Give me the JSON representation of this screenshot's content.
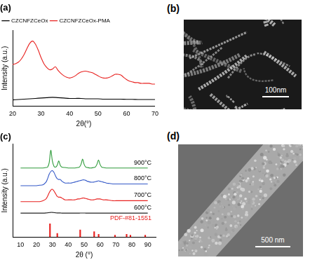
{
  "chart_data": [
    {
      "type": "line",
      "title": "(a)",
      "x_label": "2θ(°)",
      "y_label": "Intensity (a.u.)",
      "xlim": [
        20,
        70
      ],
      "xticks": [
        20,
        30,
        40,
        50,
        60,
        70
      ],
      "ylim": [
        0,
        1
      ],
      "tick_labels": "x",
      "grid": false,
      "legend": "top-left",
      "series": [
        {
          "name": "CZCNFZCeOx",
          "color": "#000000",
          "x": [
            20,
            22,
            24,
            26,
            28,
            30,
            32,
            34,
            36,
            38,
            40,
            42,
            44,
            46,
            48,
            50,
            52,
            54,
            56,
            58,
            60,
            62,
            64,
            66,
            68,
            70
          ],
          "values": [
            0.08,
            0.085,
            0.09,
            0.095,
            0.1,
            0.105,
            0.11,
            0.115,
            0.11,
            0.105,
            0.1,
            0.1,
            0.1,
            0.095,
            0.095,
            0.095,
            0.09,
            0.09,
            0.09,
            0.09,
            0.088,
            0.088,
            0.086,
            0.086,
            0.085,
            0.085
          ]
        },
        {
          "name": "CZCNFZCeOx-PMA",
          "color": "#e8211f",
          "x": [
            20,
            21,
            22,
            23,
            24,
            25,
            26,
            27,
            28,
            29,
            30,
            31,
            32,
            33,
            34,
            35,
            36,
            37,
            38,
            39,
            40,
            41,
            42,
            43,
            44,
            45,
            46,
            47,
            48,
            49,
            50,
            51,
            52,
            53,
            54,
            55,
            56,
            57,
            58,
            59,
            60,
            61,
            62,
            63,
            64,
            65,
            66,
            67,
            68,
            69,
            70
          ],
          "values": [
            0.55,
            0.56,
            0.58,
            0.62,
            0.68,
            0.76,
            0.83,
            0.86,
            0.82,
            0.74,
            0.64,
            0.56,
            0.51,
            0.48,
            0.49,
            0.52,
            0.47,
            0.43,
            0.4,
            0.38,
            0.37,
            0.38,
            0.4,
            0.43,
            0.45,
            0.46,
            0.46,
            0.45,
            0.44,
            0.42,
            0.4,
            0.38,
            0.37,
            0.37,
            0.38,
            0.4,
            0.42,
            0.42,
            0.41,
            0.38,
            0.35,
            0.33,
            0.32,
            0.31,
            0.31,
            0.3,
            0.3,
            0.3,
            0.3,
            0.29,
            0.29
          ]
        }
      ]
    },
    {
      "type": "line",
      "title": "(c)",
      "x_label": "2θ (°)",
      "y_label": "Intensity (a.u.)",
      "xlim": [
        10,
        90
      ],
      "xticks": [
        10,
        20,
        30,
        40,
        50,
        60,
        70,
        80,
        90
      ],
      "ylim": [
        0,
        1.05
      ],
      "tick_labels": "x",
      "grid": false,
      "series": [
        {
          "name": "900°C",
          "color": "#2e9b3a",
          "x": [
            10,
            14,
            18,
            20,
            22,
            24,
            26,
            27,
            28,
            29,
            30,
            31,
            32,
            33,
            34,
            35,
            36,
            38,
            40,
            42,
            44,
            46,
            47,
            48,
            49,
            50,
            51,
            52,
            54,
            56,
            57,
            58,
            59,
            60,
            61,
            62,
            64,
            66,
            68,
            70,
            74,
            78,
            82,
            86,
            90
          ],
          "values": [
            0.78,
            0.78,
            0.78,
            0.78,
            0.78,
            0.78,
            0.785,
            0.79,
            0.84,
            0.98,
            0.86,
            0.8,
            0.79,
            0.81,
            0.86,
            0.81,
            0.79,
            0.785,
            0.78,
            0.78,
            0.78,
            0.785,
            0.79,
            0.82,
            0.88,
            0.82,
            0.79,
            0.785,
            0.78,
            0.785,
            0.79,
            0.82,
            0.87,
            0.82,
            0.79,
            0.785,
            0.78,
            0.78,
            0.78,
            0.78,
            0.78,
            0.78,
            0.78,
            0.78,
            0.78
          ]
        },
        {
          "name": "800°C",
          "color": "#3358c8",
          "x": [
            10,
            14,
            18,
            20,
            22,
            24,
            26,
            27,
            28,
            29,
            30,
            31,
            32,
            33,
            34,
            35,
            36,
            38,
            40,
            42,
            44,
            46,
            47,
            48,
            49,
            50,
            51,
            52,
            54,
            56,
            57,
            58,
            59,
            60,
            61,
            62,
            64,
            66,
            68,
            70,
            74,
            78,
            82,
            86,
            90
          ],
          "values": [
            0.58,
            0.58,
            0.58,
            0.58,
            0.585,
            0.59,
            0.62,
            0.66,
            0.71,
            0.74,
            0.75,
            0.73,
            0.69,
            0.66,
            0.65,
            0.65,
            0.63,
            0.61,
            0.61,
            0.61,
            0.62,
            0.63,
            0.635,
            0.64,
            0.645,
            0.645,
            0.64,
            0.63,
            0.62,
            0.62,
            0.625,
            0.63,
            0.635,
            0.63,
            0.625,
            0.62,
            0.61,
            0.605,
            0.6,
            0.6,
            0.6,
            0.6,
            0.6,
            0.6,
            0.6
          ]
        },
        {
          "name": "700°C",
          "color": "#e8211f",
          "x": [
            10,
            14,
            18,
            20,
            22,
            24,
            26,
            27,
            28,
            29,
            30,
            31,
            32,
            33,
            34,
            35,
            36,
            38,
            40,
            42,
            44,
            46,
            47,
            48,
            49,
            50,
            51,
            52,
            54,
            56,
            57,
            58,
            59,
            60,
            61,
            62,
            64,
            66,
            68,
            70,
            74,
            78,
            82,
            86,
            90
          ],
          "values": [
            0.4,
            0.4,
            0.4,
            0.4,
            0.4,
            0.41,
            0.43,
            0.46,
            0.5,
            0.53,
            0.54,
            0.52,
            0.49,
            0.46,
            0.45,
            0.45,
            0.44,
            0.42,
            0.42,
            0.42,
            0.42,
            0.43,
            0.43,
            0.435,
            0.44,
            0.44,
            0.435,
            0.43,
            0.42,
            0.42,
            0.425,
            0.43,
            0.43,
            0.43,
            0.425,
            0.42,
            0.42,
            0.415,
            0.41,
            0.41,
            0.41,
            0.41,
            0.41,
            0.41,
            0.41
          ]
        },
        {
          "name": "600°C",
          "color": "#222222",
          "x": [
            10,
            14,
            18,
            20,
            22,
            24,
            26,
            27,
            28,
            29,
            30,
            31,
            32,
            33,
            34,
            35,
            36,
            38,
            40,
            42,
            44,
            46,
            47,
            48,
            49,
            50,
            51,
            52,
            54,
            56,
            57,
            58,
            59,
            60,
            61,
            62,
            64,
            66,
            68,
            70,
            74,
            78,
            82,
            86,
            90
          ],
          "values": [
            0.27,
            0.27,
            0.27,
            0.27,
            0.27,
            0.27,
            0.272,
            0.274,
            0.276,
            0.278,
            0.278,
            0.276,
            0.274,
            0.272,
            0.272,
            0.272,
            0.27,
            0.27,
            0.27,
            0.27,
            0.27,
            0.27,
            0.27,
            0.271,
            0.271,
            0.271,
            0.27,
            0.27,
            0.27,
            0.27,
            0.27,
            0.27,
            0.27,
            0.27,
            0.27,
            0.27,
            0.27,
            0.27,
            0.27,
            0.27,
            0.27,
            0.27,
            0.27,
            0.27,
            0.27
          ]
        },
        {
          "name": "PDF-#81-1551",
          "type": "bar",
          "color": "#e8211f",
          "x": [
            28.5,
            33.1,
            47.5,
            56.3,
            59.1,
            69.4,
            76.7,
            79.1,
            88.4
          ],
          "values": [
            0.15,
            0.04,
            0.08,
            0.06,
            0.03,
            0.02,
            0.03,
            0.02,
            0.02
          ]
        }
      ]
    }
  ],
  "images": [
    {
      "label": "(b)",
      "scale_bar": "100nm"
    },
    {
      "label": "(d)",
      "scale_bar": "500 nm"
    }
  ]
}
